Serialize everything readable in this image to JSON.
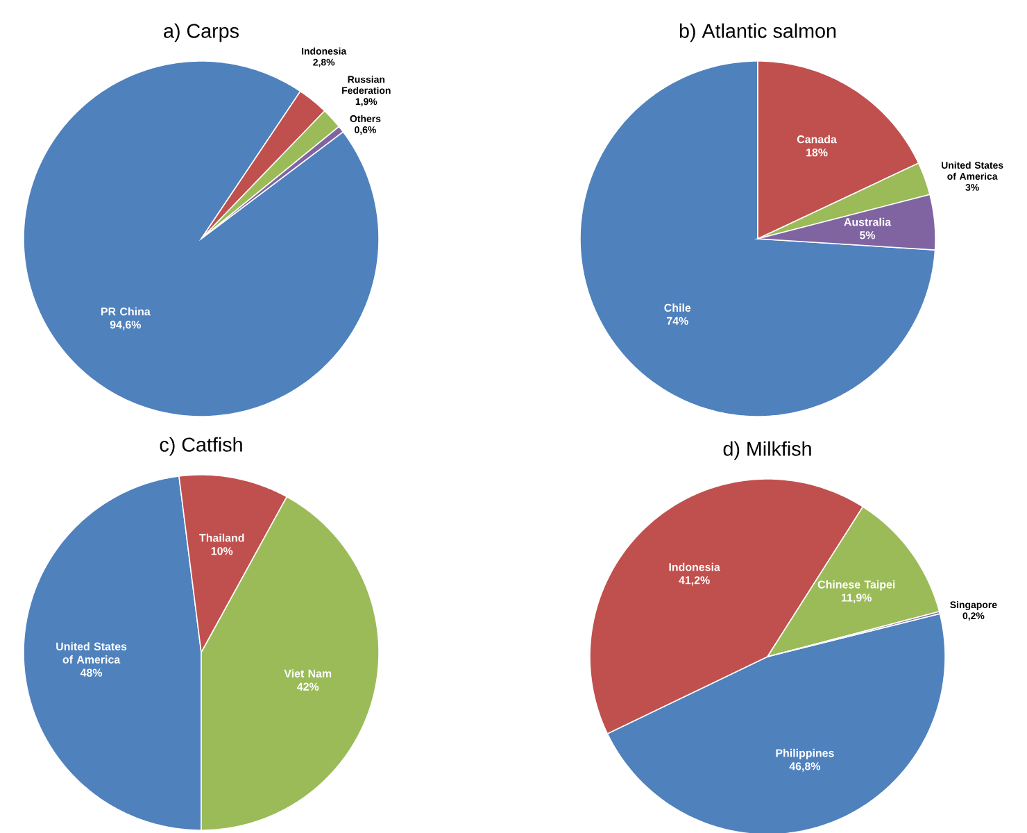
{
  "chart_data": [
    {
      "type": "pie",
      "title": "a) Carps",
      "categories": [
        "PR China",
        "Indonesia",
        "Russian Federation",
        "Others"
      ],
      "values": [
        94.6,
        2.8,
        1.9,
        0.6
      ],
      "value_labels": [
        "94,6%",
        "2,8%",
        "1,9%",
        "0,6%"
      ],
      "colors": [
        "#4f81bd",
        "#c0504d",
        "#9bbb59",
        "#8064a2"
      ]
    },
    {
      "type": "pie",
      "title": "b) Atlantic salmon",
      "categories": [
        "Chile",
        "Canada",
        "United States of America",
        "Australia"
      ],
      "values": [
        74,
        18,
        3,
        5
      ],
      "value_labels": [
        "74%",
        "18%",
        "3%",
        "5%"
      ],
      "colors": [
        "#4f81bd",
        "#c0504d",
        "#9bbb59",
        "#8064a2"
      ]
    },
    {
      "type": "pie",
      "title": "c) Catfish",
      "categories": [
        "United States of America",
        "Thailand",
        "Viet Nam"
      ],
      "values": [
        48,
        10,
        42
      ],
      "value_labels": [
        "48%",
        "10%",
        "42%"
      ],
      "colors": [
        "#4f81bd",
        "#c0504d",
        "#9bbb59"
      ]
    },
    {
      "type": "pie",
      "title": "d) Milkfish",
      "categories": [
        "Philippines",
        "Indonesia",
        "Chinese Taipei",
        "Singapore"
      ],
      "values": [
        46.8,
        41.2,
        11.9,
        0.2
      ],
      "value_labels": [
        "46,8%",
        "41,2%",
        "11,9%",
        "0,2%"
      ],
      "colors": [
        "#4f81bd",
        "#c0504d",
        "#9bbb59",
        "#8064a2"
      ]
    }
  ]
}
